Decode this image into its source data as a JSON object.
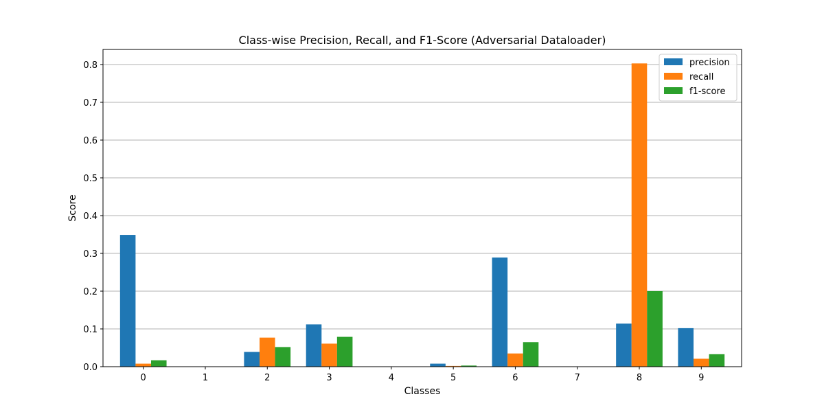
{
  "chart_data": {
    "type": "bar",
    "title": "Class-wise Precision, Recall, and F1-Score (Adversarial Dataloader)",
    "xlabel": "Classes",
    "ylabel": "Score",
    "categories": [
      "0",
      "1",
      "2",
      "3",
      "4",
      "5",
      "6",
      "7",
      "8",
      "9"
    ],
    "ylim": [
      0,
      0.84
    ],
    "yticks": [
      0.0,
      0.1,
      0.2,
      0.3,
      0.4,
      0.5,
      0.6,
      0.7,
      0.8
    ],
    "ytick_labels": [
      "0.0",
      "0.1",
      "0.2",
      "0.3",
      "0.4",
      "0.5",
      "0.6",
      "0.7",
      "0.8"
    ],
    "grid": "horizontal",
    "legend_position": "top-right",
    "series": [
      {
        "name": "precision",
        "color": "#1f77b4",
        "values": [
          0.349,
          0.0,
          0.039,
          0.112,
          0.0,
          0.008,
          0.289,
          0.0,
          0.114,
          0.102
        ]
      },
      {
        "name": "recall",
        "color": "#ff7f0e",
        "values": [
          0.008,
          0.0,
          0.077,
          0.061,
          0.0,
          0.002,
          0.035,
          0.0,
          0.803,
          0.021
        ]
      },
      {
        "name": "f1-score",
        "color": "#2ca02c",
        "values": [
          0.017,
          0.0,
          0.052,
          0.079,
          0.0,
          0.003,
          0.065,
          0.0,
          0.2,
          0.033
        ]
      }
    ]
  }
}
